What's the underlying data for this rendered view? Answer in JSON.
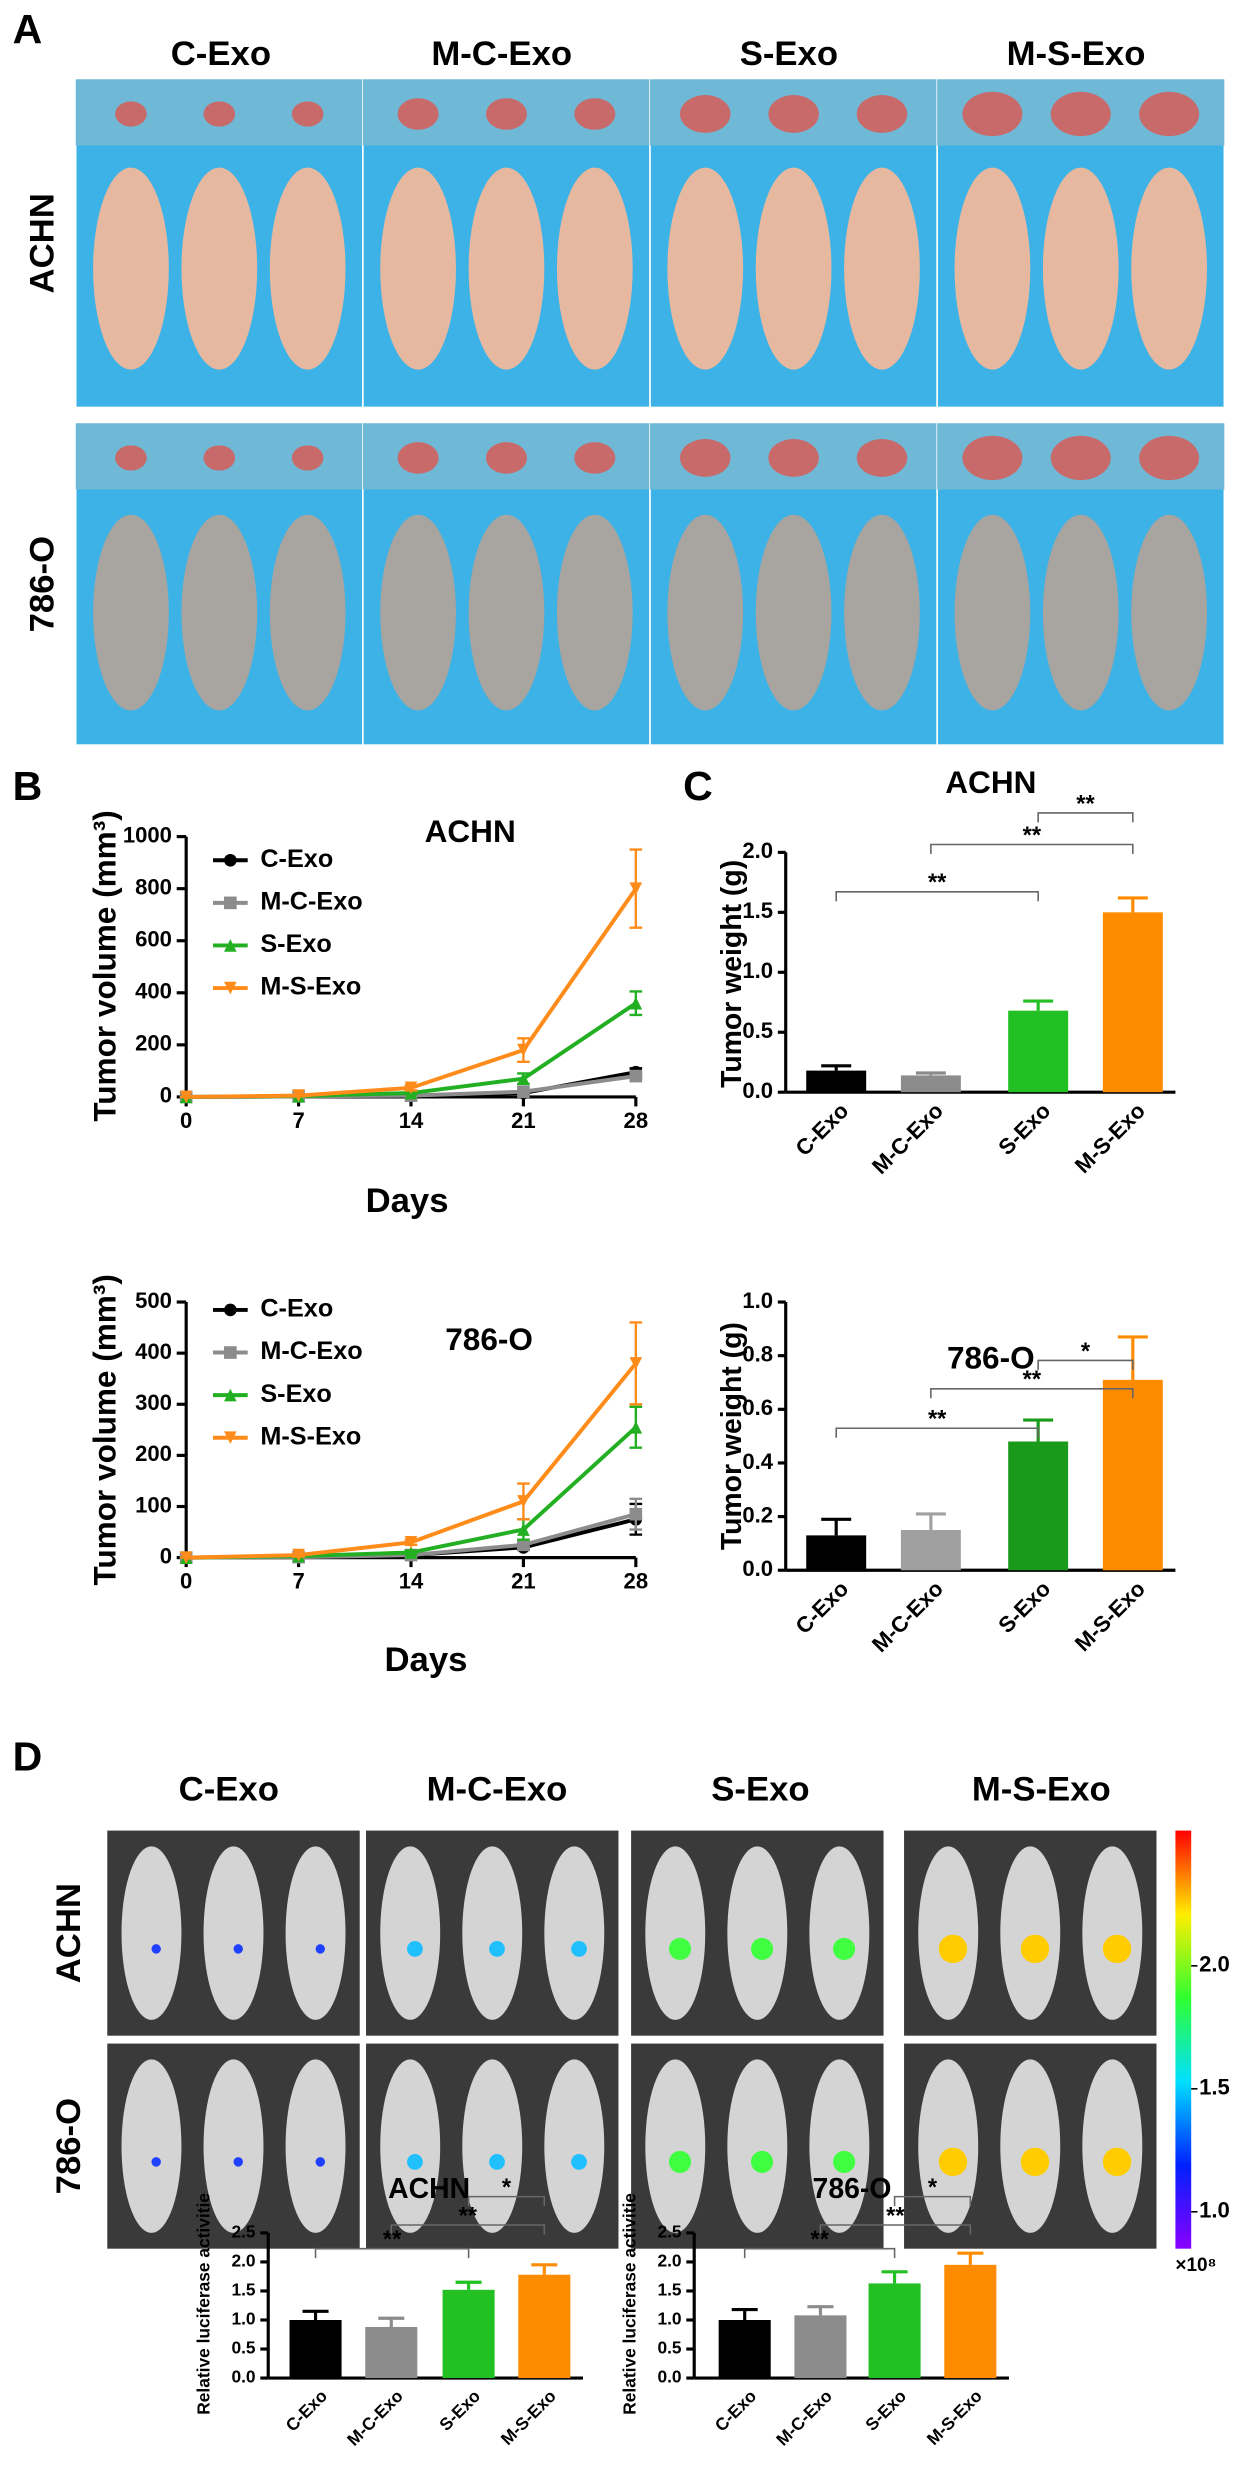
{
  "panel_labels": [
    "A",
    "B",
    "C",
    "D"
  ],
  "panel_a": {
    "groups": [
      "C-Exo",
      "M-C-Exo",
      "S-Exo",
      "M-S-Exo"
    ],
    "rows": [
      "ACHN",
      "786-O"
    ]
  },
  "panel_d": {
    "groups": [
      "C-Exo",
      "M-C-Exo",
      "S-Exo",
      "M-S-Exo"
    ],
    "rows": [
      "ACHN",
      "786-O"
    ],
    "colorbar": {
      "lim": [
        0.85,
        2.55
      ],
      "ticks": [
        {
          "value": 1,
          "label": "1.0"
        },
        1.5,
        {
          "value": 2,
          "label": "2.0"
        }
      ],
      "unit": "×10⁸"
    }
  },
  "chart_data": [
    {
      "type": "line",
      "title": "ACHN",
      "xlabel": "Days",
      "ylabel": "Tumor volume (mm³)",
      "x": [
        0,
        7,
        14,
        21,
        28
      ],
      "xlim": [
        0,
        28
      ],
      "xticks": [
        0,
        7,
        14,
        21,
        28
      ],
      "ylim": [
        0,
        1000
      ],
      "yticks": [
        0,
        200,
        400,
        600,
        800,
        1000
      ],
      "series": [
        {
          "name": "C-Exo",
          "color": "#000000",
          "marker": "circle",
          "values": [
            0,
            2,
            5,
            15,
            95
          ],
          "errors": [
            0,
            1,
            2,
            5,
            15
          ]
        },
        {
          "name": "M-C-Exo",
          "color": "#8c8c8c",
          "marker": "square",
          "values": [
            0,
            2,
            5,
            20,
            80
          ],
          "errors": [
            0,
            1,
            2,
            5,
            10
          ]
        },
        {
          "name": "S-Exo",
          "color": "#22b022",
          "marker": "triangle-up",
          "values": [
            0,
            3,
            15,
            70,
            360
          ],
          "errors": [
            0,
            2,
            5,
            20,
            45
          ]
        },
        {
          "name": "M-S-Exo",
          "color": "#ff8c1a",
          "marker": "triangle-down",
          "values": [
            0,
            5,
            35,
            180,
            800
          ],
          "errors": [
            0,
            3,
            10,
            45,
            150
          ]
        }
      ]
    },
    {
      "type": "line",
      "title": "786-O",
      "xlabel": "Days",
      "ylabel": "Tumor volume (mm³)",
      "x": [
        0,
        7,
        14,
        21,
        28
      ],
      "xlim": [
        0,
        28
      ],
      "xticks": [
        0,
        7,
        14,
        21,
        28
      ],
      "ylim": [
        0,
        500
      ],
      "yticks": [
        0,
        100,
        200,
        300,
        400,
        500
      ],
      "series": [
        {
          "name": "C-Exo",
          "color": "#000000",
          "marker": "circle",
          "values": [
            0,
            1,
            5,
            20,
            75
          ],
          "errors": [
            0,
            1,
            2,
            5,
            30
          ]
        },
        {
          "name": "M-C-Exo",
          "color": "#8c8c8c",
          "marker": "square",
          "values": [
            0,
            1,
            5,
            25,
            85
          ],
          "errors": [
            0,
            1,
            2,
            5,
            30
          ]
        },
        {
          "name": "S-Exo",
          "color": "#22b022",
          "marker": "triangle-up",
          "values": [
            0,
            3,
            10,
            55,
            255
          ],
          "errors": [
            0,
            2,
            4,
            20,
            40
          ]
        },
        {
          "name": "M-S-Exo",
          "color": "#ff8c1a",
          "marker": "triangle-down",
          "values": [
            0,
            5,
            30,
            110,
            380
          ],
          "errors": [
            0,
            3,
            5,
            35,
            80
          ]
        }
      ]
    },
    {
      "type": "bar",
      "title": "ACHN",
      "ylabel": "Tumor weight (g)",
      "categories": [
        "C-Exo",
        "M-C-Exo",
        "S-Exo",
        "M-S-Exo"
      ],
      "values": [
        0.18,
        0.14,
        0.68,
        1.5
      ],
      "errors": [
        0.04,
        0.02,
        0.08,
        0.12
      ],
      "colors": [
        "#000000",
        "#8c8c8c",
        "#22c022",
        "#ff8c00"
      ],
      "ylim": [
        0,
        2
      ],
      "yticks": [
        {
          "value": 0,
          "label": "0.0"
        },
        0.5,
        {
          "value": 1,
          "label": "1.0"
        },
        1.5,
        {
          "value": 2,
          "label": "2.0"
        }
      ],
      "annotations": [
        {
          "text": "**",
          "between": [
            "C-Exo",
            "S-Exo"
          ]
        },
        {
          "text": "**",
          "between": [
            "M-C-Exo",
            "M-S-Exo"
          ]
        },
        {
          "text": "**",
          "between": [
            "S-Exo",
            "M-S-Exo"
          ]
        }
      ]
    },
    {
      "type": "bar",
      "title": "786-O",
      "ylabel": "Tumor weight (g)",
      "categories": [
        "C-Exo",
        "M-C-Exo",
        "S-Exo",
        "M-S-Exo"
      ],
      "values": [
        0.13,
        0.15,
        0.48,
        0.71
      ],
      "errors": [
        0.06,
        0.06,
        0.08,
        0.16
      ],
      "colors": [
        "#000000",
        "#a0a0a0",
        "#1a9a1a",
        "#ff8c00"
      ],
      "ylim": [
        0,
        1
      ],
      "yticks": [
        {
          "value": 0,
          "label": "0.0"
        },
        0.2,
        0.4,
        0.6,
        0.8,
        {
          "value": 1,
          "label": "1.0"
        }
      ],
      "annotations": [
        {
          "text": "**",
          "between": [
            "C-Exo",
            "S-Exo"
          ]
        },
        {
          "text": "**",
          "between": [
            "M-C-Exo",
            "M-S-Exo"
          ]
        },
        {
          "text": "*",
          "between": [
            "S-Exo",
            "M-S-Exo"
          ]
        }
      ]
    },
    {
      "type": "bar",
      "title": "ACHN",
      "ylabel": "Relative luciferase activitie",
      "categories": [
        "C-Exo",
        "M-C-Exo",
        "S-Exo",
        "M-S-Exo"
      ],
      "values": [
        1.0,
        0.88,
        1.52,
        1.78
      ],
      "errors": [
        0.15,
        0.15,
        0.13,
        0.17
      ],
      "colors": [
        "#000000",
        "#8c8c8c",
        "#22c022",
        "#ff8c00"
      ],
      "ylim": [
        0,
        2.5
      ],
      "yticks": [
        {
          "value": 0,
          "label": "0.0"
        },
        0.5,
        {
          "value": 1,
          "label": "1.0"
        },
        1.5,
        {
          "value": 2,
          "label": "2.0"
        },
        2.5
      ],
      "annotations": [
        {
          "text": "**",
          "between": [
            "C-Exo",
            "S-Exo"
          ]
        },
        {
          "text": "**",
          "between": [
            "M-C-Exo",
            "M-S-Exo"
          ]
        },
        {
          "text": "*",
          "between": [
            "S-Exo",
            "M-S-Exo"
          ]
        }
      ]
    },
    {
      "type": "bar",
      "title": "786-O",
      "ylabel": "Relative luciferase activitie",
      "categories": [
        "C-Exo",
        "M-C-Exo",
        "S-Exo",
        "M-S-Exo"
      ],
      "values": [
        1.0,
        1.08,
        1.63,
        1.95
      ],
      "errors": [
        0.18,
        0.15,
        0.2,
        0.2
      ],
      "colors": [
        "#000000",
        "#8c8c8c",
        "#22c022",
        "#ff8c00"
      ],
      "ylim": [
        0,
        2.5
      ],
      "yticks": [
        {
          "value": 0,
          "label": "0.0"
        },
        0.5,
        {
          "value": 1,
          "label": "1.0"
        },
        1.5,
        {
          "value": 2,
          "label": "2.0"
        },
        2.5
      ],
      "annotations": [
        {
          "text": "**",
          "between": [
            "C-Exo",
            "S-Exo"
          ]
        },
        {
          "text": "**",
          "between": [
            "M-C-Exo",
            "M-S-Exo"
          ]
        },
        {
          "text": "*",
          "between": [
            "S-Exo",
            "M-S-Exo"
          ]
        }
      ]
    }
  ]
}
